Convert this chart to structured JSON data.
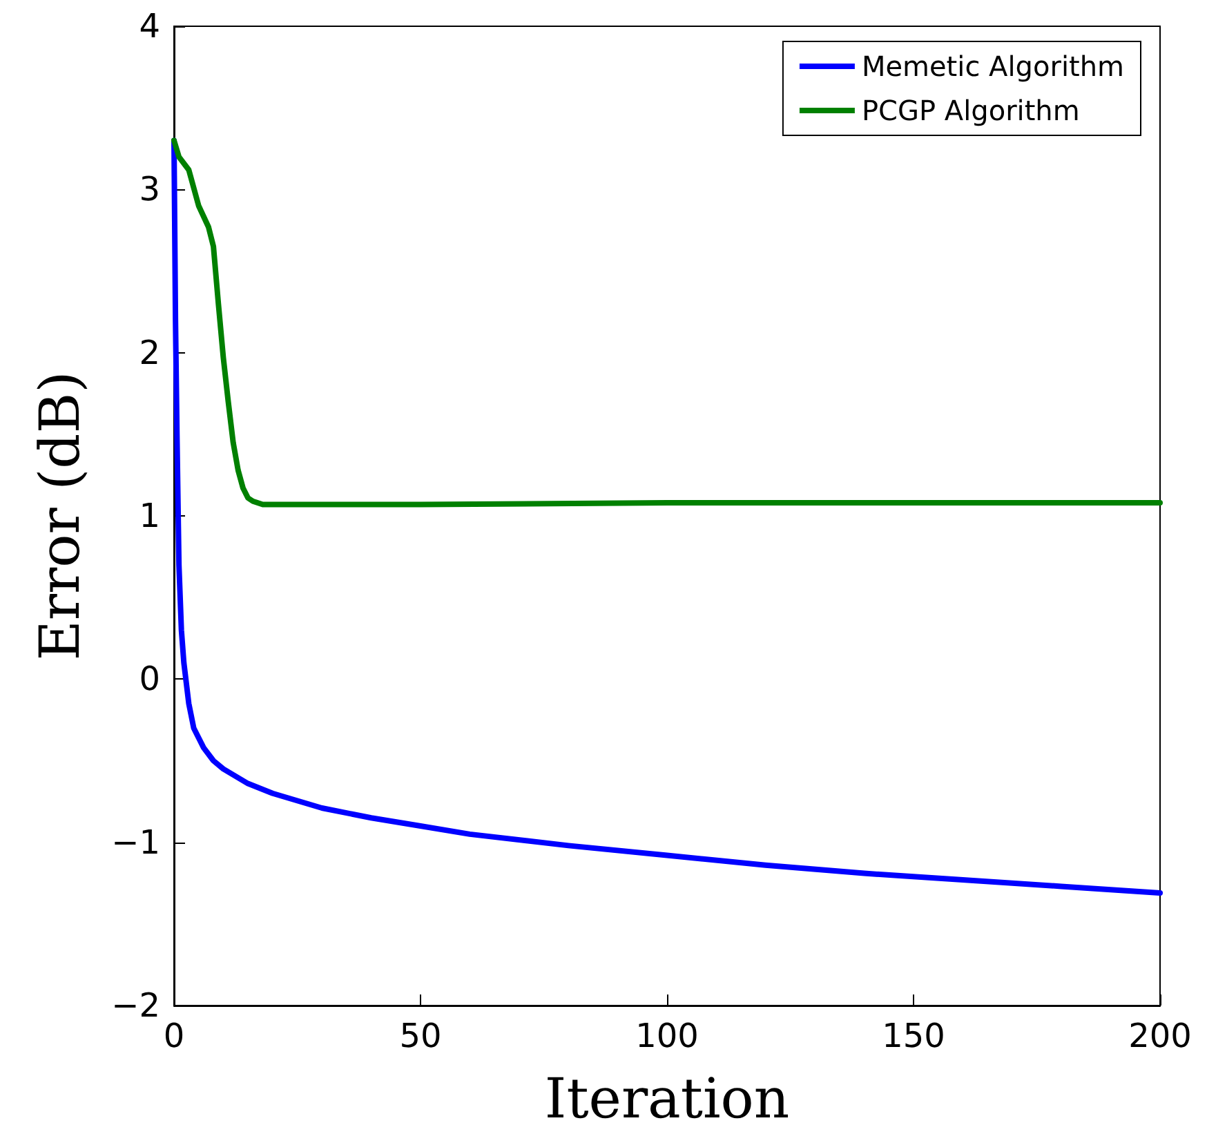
{
  "chart_data": {
    "type": "line",
    "xlabel": "Iteration",
    "ylabel": "Error (dB)",
    "xlim": [
      0,
      200
    ],
    "xticks": [
      0,
      50,
      100,
      150,
      200
    ],
    "ylim": [
      -2,
      4
    ],
    "yticks": [
      -2,
      -1,
      0,
      1,
      2,
      3,
      4
    ],
    "grid": false,
    "legend": "top right",
    "marker": "none",
    "line_style": "solid",
    "series": [
      {
        "name": "Memetic Algorithm",
        "color": "#0000ff",
        "x": [
          0,
          0.3,
          0.6,
          1,
          1.5,
          2,
          3,
          4,
          6,
          8,
          10,
          15,
          20,
          30,
          40,
          50,
          60,
          80,
          100,
          120,
          140,
          160,
          180,
          200
        ],
        "values": [
          3.3,
          2.2,
          1.5,
          0.7,
          0.3,
          0.1,
          -0.15,
          -0.3,
          -0.42,
          -0.5,
          -0.55,
          -0.64,
          -0.7,
          -0.79,
          -0.85,
          -0.9,
          -0.95,
          -1.02,
          -1.08,
          -1.14,
          -1.19,
          -1.23,
          -1.27,
          -1.31
        ]
      },
      {
        "name": "PCGP Algorithm",
        "color": "#008000",
        "x": [
          0,
          1,
          3,
          5,
          7,
          8,
          9,
          10,
          11,
          12,
          13,
          14,
          15,
          16,
          18,
          20,
          50,
          100,
          200
        ],
        "values": [
          3.3,
          3.2,
          3.12,
          2.9,
          2.77,
          2.65,
          2.3,
          1.97,
          1.7,
          1.45,
          1.28,
          1.17,
          1.11,
          1.09,
          1.07,
          1.07,
          1.07,
          1.08,
          1.08
        ]
      }
    ]
  }
}
